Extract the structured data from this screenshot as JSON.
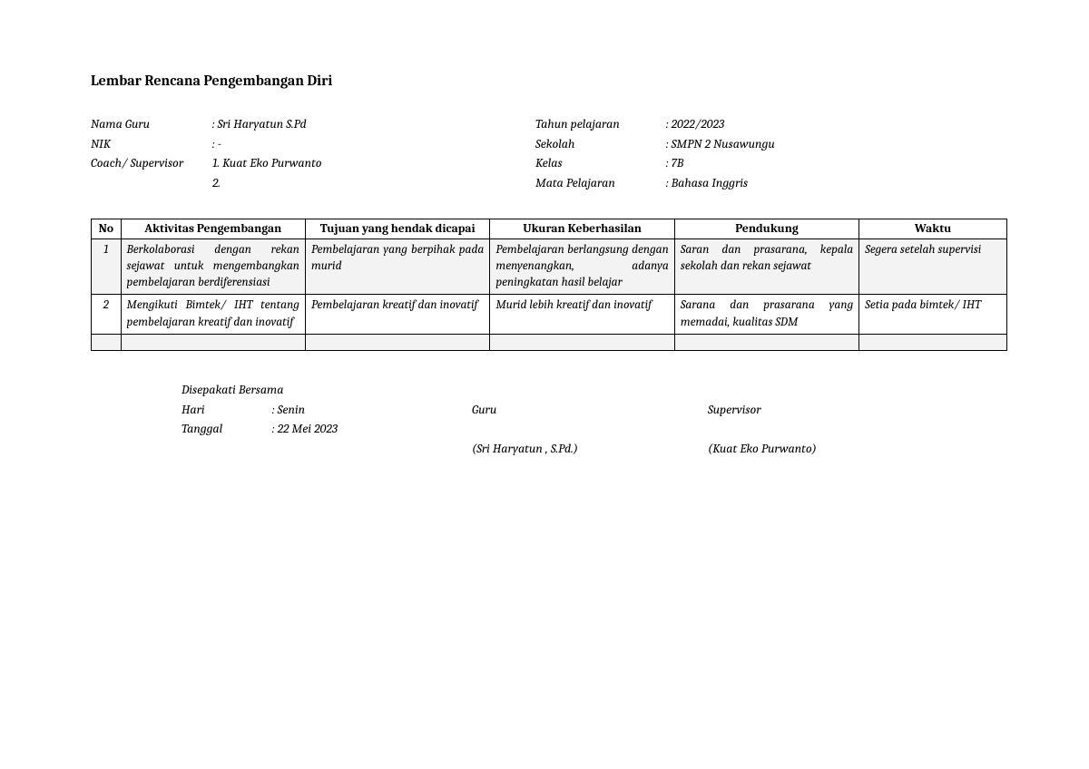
{
  "title": "Lembar Rencana Pengembangan Diri",
  "info_left": {
    "nama_guru_label": "Nama Guru",
    "nama_guru_value": ": Sri Haryatun S.Pd",
    "nik_label": "NIK",
    "nik_value": ": -",
    "coach_label": "Coach/ Supervisor",
    "coach_value_1": "1. Kuat Eko Purwanto",
    "coach_value_2": "2."
  },
  "info_right": {
    "tahun_label": "Tahun pelajaran",
    "tahun_value": ": 2022/2023",
    "sekolah_label": "Sekolah",
    "sekolah_value": ": SMPN 2 Nusawungu",
    "kelas_label": "Kelas",
    "kelas_value": ": 7B",
    "mapel_label": "Mata Pelajaran",
    "mapel_value": ": Bahasa Inggris"
  },
  "table": {
    "headers": {
      "no": "No",
      "aktivitas": "Aktivitas Pengembangan",
      "tujuan": "Tujuan yang hendak dicapai",
      "ukuran": "Ukuran Keberhasilan",
      "pendukung": "Pendukung",
      "waktu": "Waktu"
    },
    "rows": [
      {
        "no": "1",
        "aktivitas": "Berkolaborasi dengan rekan sejawat untuk mengembangkan pembelajaran berdiferensiasi",
        "tujuan": "Pembelajaran yang berpihak pada murid",
        "ukuran": "Pembelajaran berlangsung dengan menyenangkan, adanya peningkatan hasil belajar",
        "pendukung": "Saran dan prasarana, kepala sekolah dan rekan sejawat",
        "waktu": "Segera setelah supervisi"
      },
      {
        "no": "2",
        "aktivitas": "Mengikuti Bimtek/ IHT tentang pembelajaran kreatif dan inovatif",
        "tujuan": "Pembelajaran kreatif dan inovatif",
        "ukuran": "Murid lebih kreatif dan inovatif",
        "pendukung": "Sarana dan prasarana yang memadai, kualitas SDM",
        "waktu": "Setia pada bimtek/ IHT"
      }
    ]
  },
  "footer": {
    "agreed": "Disepakati Bersama",
    "hari_label": "Hari",
    "hari_value": ": Senin",
    "tanggal_label": "Tanggal",
    "tanggal_value": ": 22 Mei 2023",
    "guru_role": "Guru",
    "guru_name": "(Sri Haryatun , S.Pd.)",
    "supervisor_role": "Supervisor",
    "supervisor_name": "(Kuat Eko Purwanto)"
  }
}
